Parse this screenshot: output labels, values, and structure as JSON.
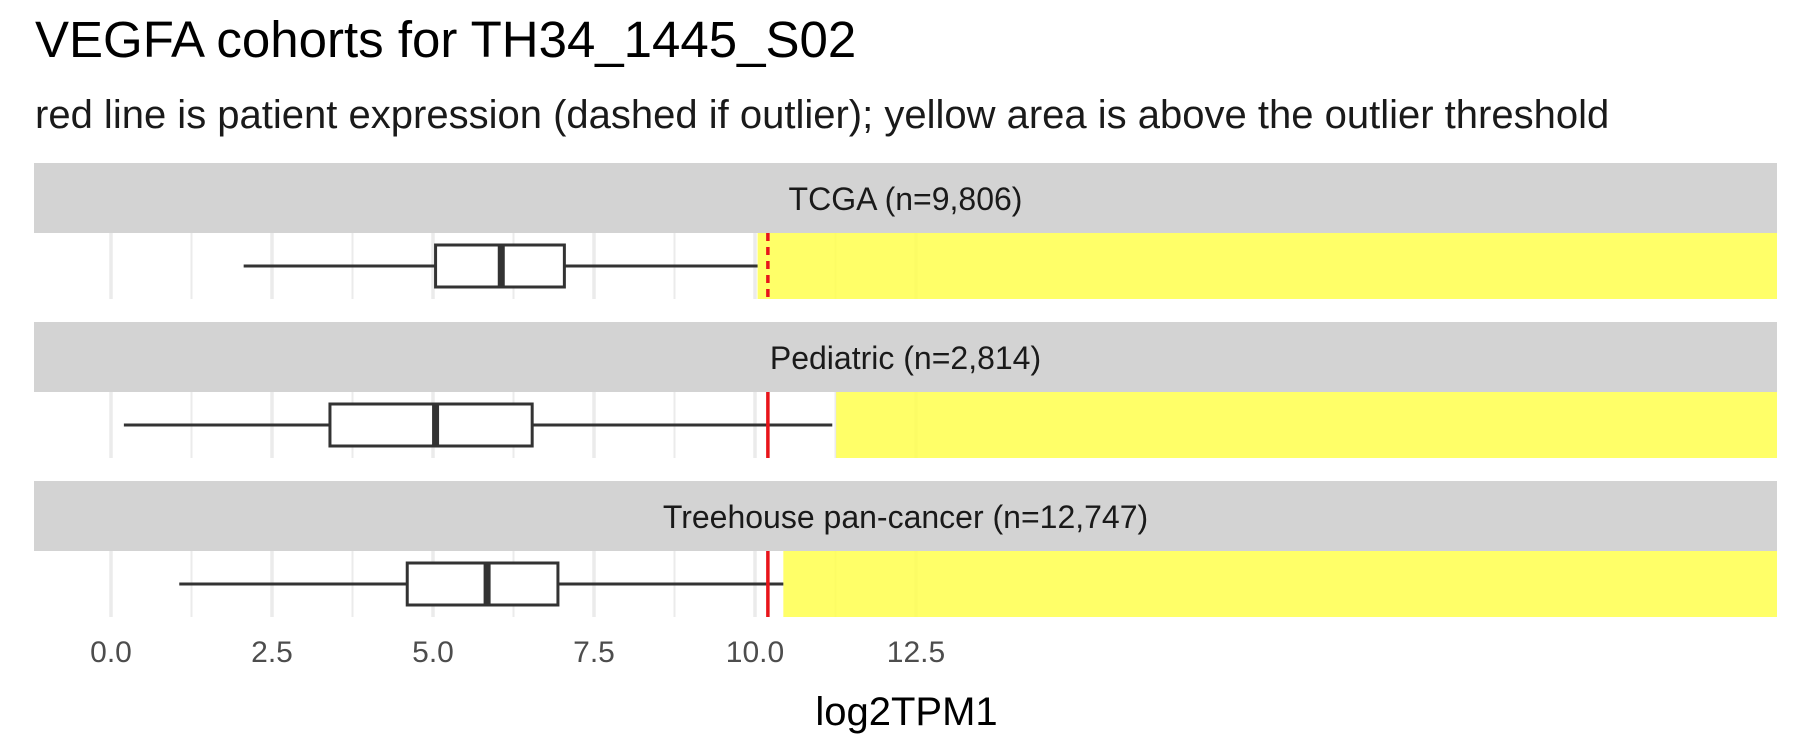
{
  "title": "VEGFA cohorts for TH34_1445_S02",
  "subtitle": "red line is patient expression (dashed if outlier); yellow area is above the outlier threshold",
  "colors": {
    "strip_background": "#d3d3d3",
    "outlier_area": "#ffff4d",
    "patient_line": "#e8141a",
    "box_stroke": "#333333",
    "grid": "#ebebeb"
  },
  "chart_data": {
    "type": "boxplot",
    "xlabel": "log2TPM1",
    "xlim": [
      -0.3,
      12.95
    ],
    "xticks": [
      0.0,
      2.5,
      5.0,
      7.5,
      10.0,
      12.5
    ],
    "xtick_labels": [
      "0.0",
      "2.5",
      "5.0",
      "7.5",
      "10.0",
      "12.5"
    ],
    "grid": true,
    "patient_value": 10.2,
    "panels": [
      {
        "label": "TCGA (n=9,806)",
        "whisker_low": 2.06,
        "q1": 5.04,
        "median": 6.06,
        "q3": 7.04,
        "whisker_high": 10.04,
        "outlier_threshold": 10.04,
        "patient_outlier": true
      },
      {
        "label": "Pediatric (n=2,814)",
        "whisker_low": 0.2,
        "q1": 3.4,
        "median": 5.04,
        "q3": 6.54,
        "whisker_high": 11.2,
        "outlier_threshold": 11.26,
        "patient_outlier": false
      },
      {
        "label": "Treehouse pan-cancer (n=12,747)",
        "whisker_low": 1.06,
        "q1": 4.6,
        "median": 5.84,
        "q3": 6.94,
        "whisker_high": 10.44,
        "outlier_threshold": 10.44,
        "patient_outlier": false
      }
    ]
  }
}
